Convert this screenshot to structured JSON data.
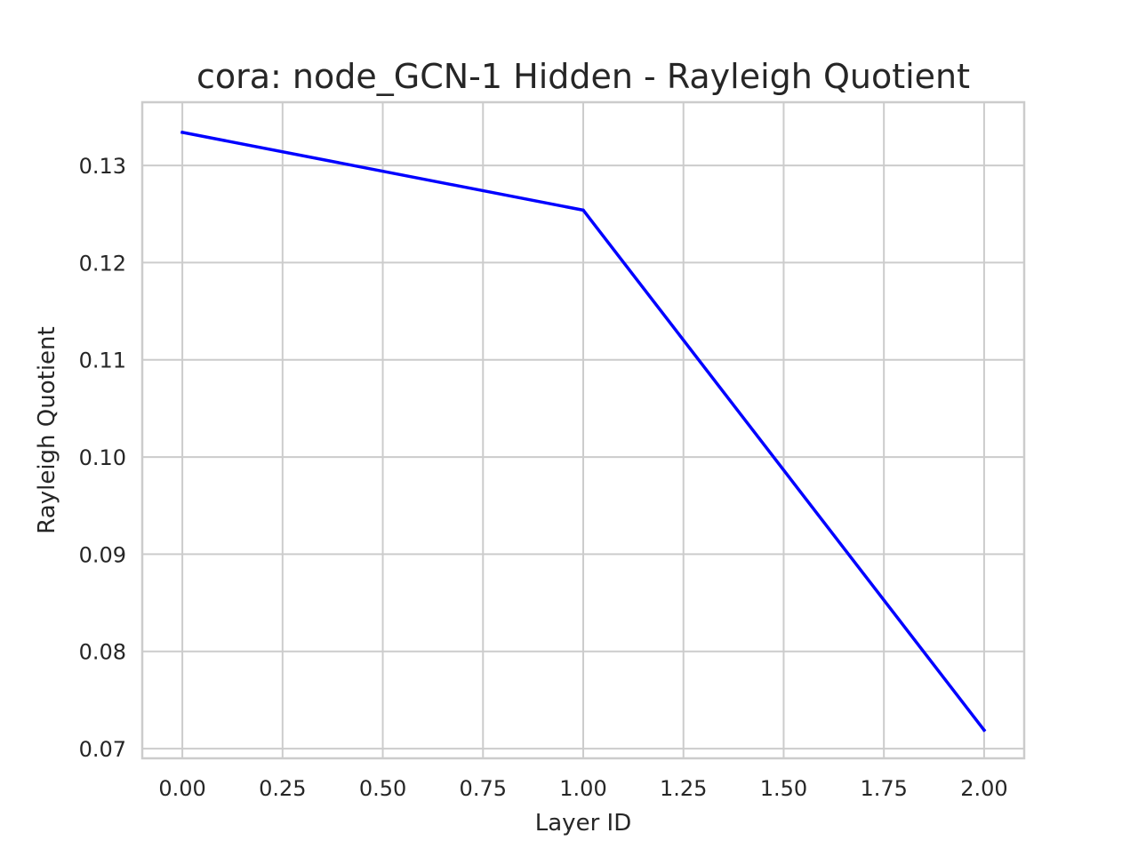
{
  "chart_data": {
    "type": "line",
    "title": "cora: node_GCN-1 Hidden - Rayleigh Quotient",
    "xlabel": "Layer ID",
    "ylabel": "Rayleigh Quotient",
    "x": [
      0,
      1,
      2
    ],
    "series": [
      {
        "values": [
          0.1334,
          0.1254,
          0.0719
        ],
        "color": "#0000ff"
      }
    ],
    "xlim": [
      -0.1,
      2.1
    ],
    "ylim": [
      0.069,
      0.1365
    ],
    "xticks": [
      0.0,
      0.25,
      0.5,
      0.75,
      1.0,
      1.25,
      1.5,
      1.75,
      2.0
    ],
    "xtick_labels": [
      "0.00",
      "0.25",
      "0.50",
      "0.75",
      "1.00",
      "1.25",
      "1.50",
      "1.75",
      "2.00"
    ],
    "yticks": [
      0.07,
      0.08,
      0.09,
      0.1,
      0.11,
      0.12,
      0.13
    ],
    "ytick_labels": [
      "0.07",
      "0.08",
      "0.09",
      "0.10",
      "0.11",
      "0.12",
      "0.13"
    ],
    "grid": true,
    "legend": "none"
  }
}
